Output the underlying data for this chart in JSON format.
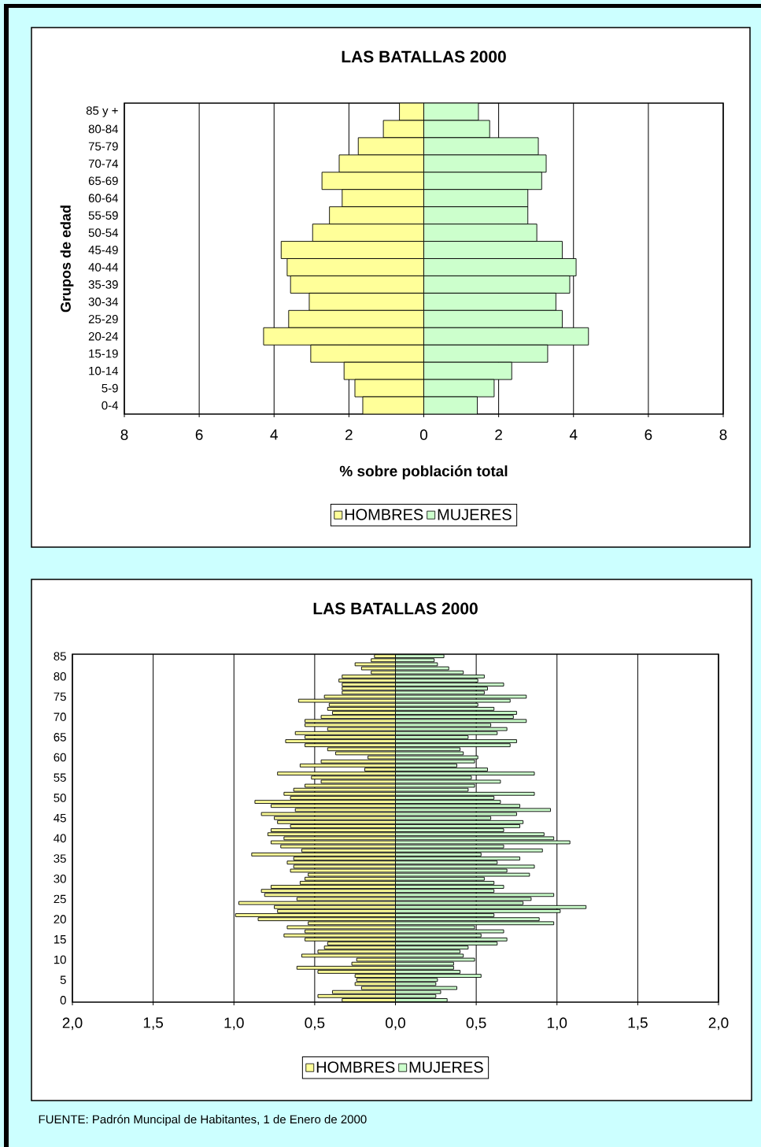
{
  "chart_data": [
    {
      "type": "bar",
      "orientation": "horizontal",
      "title": "LAS BATALLAS 2000",
      "xlabel": "% sobre población total",
      "ylabel": "Grupos de edad",
      "categories": [
        "85 y +",
        "80-84",
        "75-79",
        "70-74",
        "65-69",
        "60-64",
        "55-59",
        "50-54",
        "45-49",
        "40-44",
        "35-39",
        "30-34",
        "25-29",
        "20-24",
        "15-19",
        "10-14",
        "5-9",
        "0-4"
      ],
      "series": [
        {
          "name": "HOMBRES",
          "color": "#ffff99",
          "values": [
            -0.65,
            -1.08,
            -1.75,
            -2.26,
            -2.72,
            -2.18,
            -2.52,
            -2.97,
            -3.81,
            -3.65,
            -3.56,
            -3.06,
            -3.61,
            -4.28,
            -3.02,
            -2.13,
            -1.84,
            -1.63
          ]
        },
        {
          "name": "MUJERES",
          "color": "#ccffcc",
          "values": [
            1.46,
            1.76,
            3.06,
            3.27,
            3.15,
            2.78,
            2.78,
            3.02,
            3.7,
            4.07,
            3.9,
            3.53,
            3.7,
            4.4,
            3.31,
            2.35,
            1.88,
            1.43
          ]
        }
      ],
      "xlim": [
        -8,
        8
      ],
      "xticks": [
        {
          "value": -8,
          "label": "8"
        },
        {
          "value": -6,
          "label": "6"
        },
        {
          "value": -4,
          "label": "4"
        },
        {
          "value": -2,
          "label": "2"
        },
        {
          "value": 0,
          "label": "0"
        },
        {
          "value": 2,
          "label": "2"
        },
        {
          "value": 4,
          "label": "4"
        },
        {
          "value": 6,
          "label": "6"
        },
        {
          "value": 8,
          "label": "8"
        }
      ],
      "grid": "x",
      "legend": "bottom",
      "stacked": true
    },
    {
      "type": "bar",
      "orientation": "horizontal",
      "title": "LAS BATALLAS 2000",
      "categories": [
        "85",
        null,
        null,
        null,
        null,
        "80",
        null,
        null,
        null,
        null,
        "75",
        null,
        null,
        null,
        null,
        "70",
        null,
        null,
        null,
        null,
        "65",
        null,
        null,
        null,
        null,
        "60",
        null,
        null,
        null,
        null,
        "55",
        null,
        null,
        null,
        null,
        "50",
        null,
        null,
        null,
        null,
        "45",
        null,
        null,
        null,
        null,
        "40",
        null,
        null,
        null,
        null,
        "35",
        null,
        null,
        null,
        null,
        "30",
        null,
        null,
        null,
        null,
        "25",
        null,
        null,
        null,
        null,
        "20",
        null,
        null,
        null,
        null,
        "15",
        null,
        null,
        null,
        null,
        "10",
        null,
        null,
        null,
        null,
        "5",
        null,
        null,
        null,
        null,
        "0"
      ],
      "series": [
        {
          "name": "HOMBRES",
          "color": "#ffff99",
          "values": [
            -0.13,
            -0.15,
            -0.25,
            -0.21,
            -0.15,
            -0.33,
            -0.35,
            -0.33,
            -0.33,
            -0.33,
            -0.44,
            -0.6,
            -0.41,
            -0.42,
            -0.39,
            -0.46,
            -0.56,
            -0.56,
            -0.42,
            -0.62,
            -0.56,
            -0.68,
            -0.56,
            -0.42,
            -0.37,
            -0.17,
            -0.46,
            -0.59,
            -0.19,
            -0.73,
            -0.52,
            -0.46,
            -0.56,
            -0.63,
            -0.69,
            -0.65,
            -0.87,
            -0.77,
            -0.62,
            -0.83,
            -0.75,
            -0.73,
            -0.65,
            -0.77,
            -0.79,
            -0.69,
            -0.77,
            -0.71,
            -0.58,
            -0.89,
            -0.63,
            -0.67,
            -0.63,
            -0.65,
            -0.54,
            -0.56,
            -0.59,
            -0.77,
            -0.83,
            -0.81,
            -0.61,
            -0.97,
            -0.75,
            -0.73,
            -0.99,
            -0.85,
            -0.54,
            -0.67,
            -0.56,
            -0.69,
            -0.56,
            -0.42,
            -0.44,
            -0.48,
            -0.58,
            -0.24,
            -0.27,
            -0.61,
            -0.48,
            -0.25,
            -0.24,
            -0.25,
            -0.21,
            -0.39,
            -0.48,
            -0.33
          ]
        },
        {
          "name": "MUJERES",
          "color": "#ccffcc",
          "values": [
            0.3,
            0.24,
            0.26,
            0.33,
            0.42,
            0.55,
            0.51,
            0.67,
            0.57,
            0.55,
            0.81,
            0.71,
            0.51,
            0.61,
            0.75,
            0.73,
            0.81,
            0.59,
            0.69,
            0.63,
            0.45,
            0.75,
            0.71,
            0.4,
            0.42,
            0.51,
            0.49,
            0.38,
            0.57,
            0.86,
            0.47,
            0.65,
            0.49,
            0.45,
            0.86,
            0.61,
            0.65,
            0.77,
            0.96,
            0.75,
            0.59,
            0.79,
            0.77,
            0.67,
            0.92,
            0.98,
            1.08,
            0.67,
            0.91,
            0.53,
            0.77,
            0.63,
            0.86,
            0.69,
            0.83,
            0.55,
            0.61,
            0.67,
            0.61,
            0.98,
            0.84,
            0.79,
            1.18,
            1.02,
            0.61,
            0.89,
            0.98,
            0.49,
            0.67,
            0.53,
            0.69,
            0.63,
            0.45,
            0.4,
            0.42,
            0.49,
            0.36,
            0.36,
            0.4,
            0.53,
            0.26,
            0.25,
            0.38,
            0.28,
            0.25,
            0.32
          ]
        }
      ],
      "xlim": [
        -2,
        2
      ],
      "xticks": [
        {
          "value": -2,
          "label": "2,0"
        },
        {
          "value": -1.5,
          "label": "1,5"
        },
        {
          "value": -1,
          "label": "1,0"
        },
        {
          "value": -0.5,
          "label": "0,5"
        },
        {
          "value": 0,
          "label": "0,0"
        },
        {
          "value": 0.5,
          "label": "0,5"
        },
        {
          "value": 1,
          "label": "1,0"
        },
        {
          "value": 1.5,
          "label": "1,5"
        },
        {
          "value": 2,
          "label": "2,0"
        }
      ],
      "grid": "x",
      "legend": "bottom",
      "stacked": true,
      "annotations": [
        "FUENTE: Padrón Muncipal de Habitantes, 1 de Enero de 2000"
      ]
    }
  ]
}
